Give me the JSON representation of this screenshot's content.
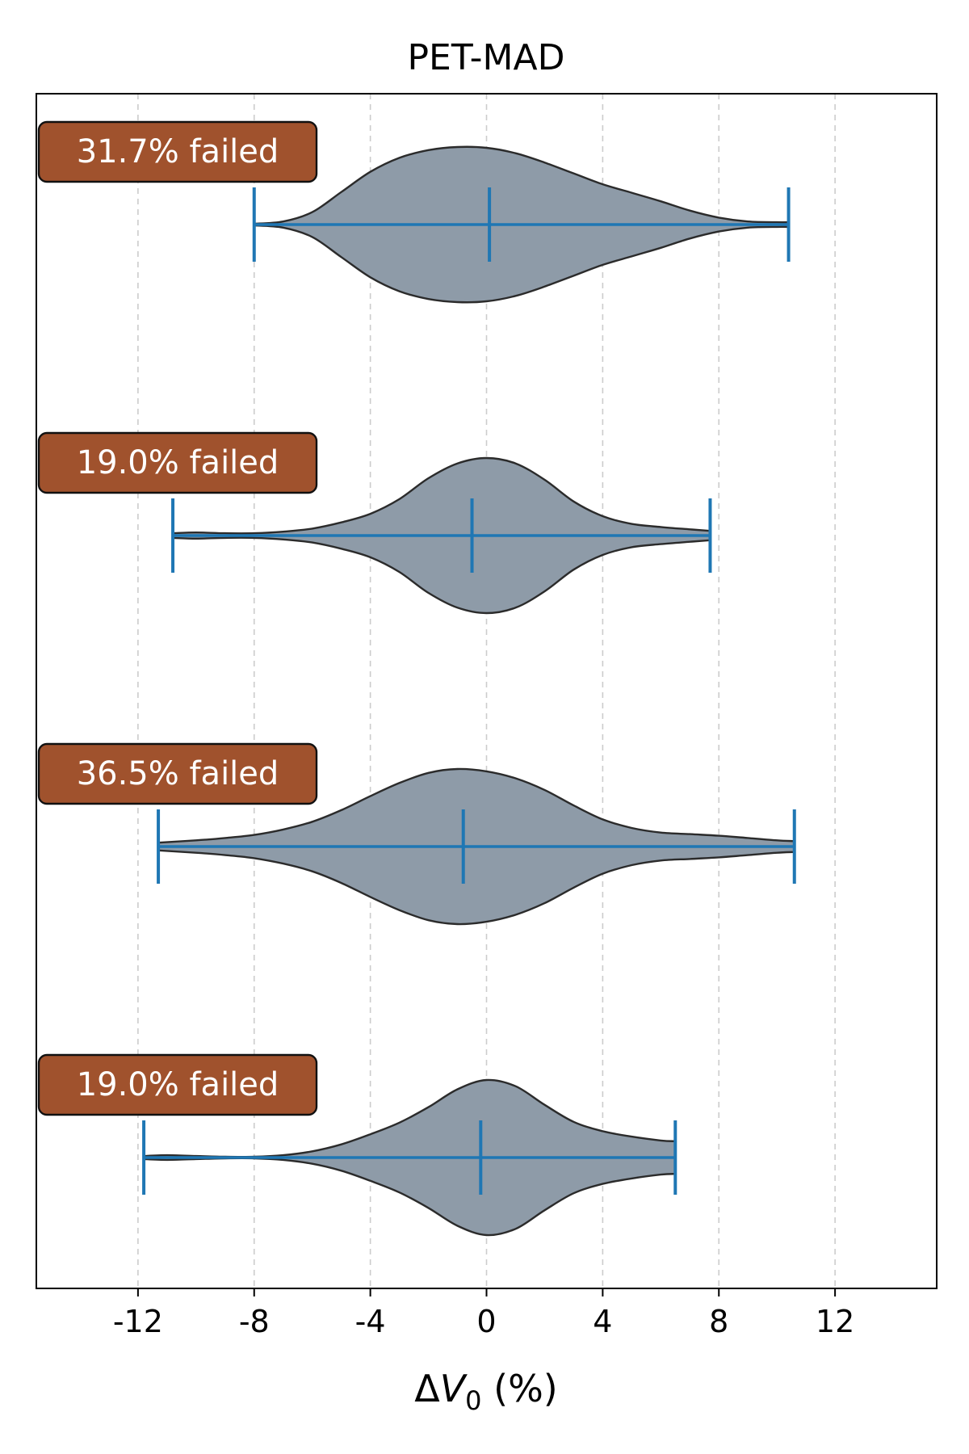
{
  "chart_data": {
    "type": "violin",
    "orientation": "horizontal",
    "title": "PET-MAD",
    "xlabel": "ΔV₀ (%)",
    "xlabel_parts": {
      "delta": "Δ",
      "var": "V",
      "sub": "0",
      "rest": " (%)"
    },
    "ylabel": "",
    "xlim": [
      -15.5,
      15.5
    ],
    "xticks": [
      -12,
      -8,
      -4,
      0,
      4,
      8,
      12
    ],
    "xtick_labels": [
      "-12",
      "-8",
      "-4",
      "0",
      "4",
      "8",
      "12"
    ],
    "grid": {
      "x": true,
      "y": false,
      "style": "dashed"
    },
    "colors": {
      "violin_fill": "#8e9ba8",
      "violin_edge": "#2b2b2b",
      "stat_lines": "#1f77b4",
      "badge_fill": "#a0522d",
      "badge_edge": "#111111",
      "grid": "#cccccc"
    },
    "violins": [
      {
        "annotation": "31.7% failed",
        "min": -8.0,
        "max": 10.4,
        "median": 0.1,
        "density": [
          [
            -8.0,
            0.01
          ],
          [
            -7.0,
            0.04
          ],
          [
            -6.0,
            0.16
          ],
          [
            -5.0,
            0.42
          ],
          [
            -4.0,
            0.68
          ],
          [
            -3.0,
            0.86
          ],
          [
            -2.0,
            0.96
          ],
          [
            -1.0,
            1.0
          ],
          [
            0.0,
            0.99
          ],
          [
            1.0,
            0.92
          ],
          [
            2.0,
            0.8
          ],
          [
            3.0,
            0.66
          ],
          [
            4.0,
            0.52
          ],
          [
            5.0,
            0.41
          ],
          [
            6.0,
            0.3
          ],
          [
            7.0,
            0.18
          ],
          [
            8.0,
            0.09
          ],
          [
            9.0,
            0.04
          ],
          [
            10.0,
            0.03
          ],
          [
            10.4,
            0.03
          ]
        ]
      },
      {
        "annotation": "19.0% failed",
        "min": -10.8,
        "max": 7.7,
        "median": -0.5,
        "density": [
          [
            -10.8,
            0.03
          ],
          [
            -10.0,
            0.04
          ],
          [
            -9.0,
            0.03
          ],
          [
            -8.0,
            0.03
          ],
          [
            -7.0,
            0.05
          ],
          [
            -6.0,
            0.09
          ],
          [
            -5.0,
            0.17
          ],
          [
            -4.0,
            0.28
          ],
          [
            -3.0,
            0.47
          ],
          [
            -2.0,
            0.74
          ],
          [
            -1.0,
            0.93
          ],
          [
            0.0,
            1.0
          ],
          [
            1.0,
            0.93
          ],
          [
            2.0,
            0.72
          ],
          [
            3.0,
            0.44
          ],
          [
            4.0,
            0.25
          ],
          [
            5.0,
            0.15
          ],
          [
            6.0,
            0.11
          ],
          [
            7.0,
            0.08
          ],
          [
            7.7,
            0.06
          ]
        ]
      },
      {
        "annotation": "36.5% failed",
        "min": -11.3,
        "max": 10.6,
        "median": -0.8,
        "density": [
          [
            -11.3,
            0.05
          ],
          [
            -10.0,
            0.08
          ],
          [
            -9.0,
            0.11
          ],
          [
            -8.0,
            0.15
          ],
          [
            -7.0,
            0.22
          ],
          [
            -6.0,
            0.32
          ],
          [
            -5.0,
            0.47
          ],
          [
            -4.0,
            0.65
          ],
          [
            -3.0,
            0.82
          ],
          [
            -2.0,
            0.95
          ],
          [
            -1.0,
            1.0
          ],
          [
            0.0,
            0.97
          ],
          [
            1.0,
            0.88
          ],
          [
            2.0,
            0.73
          ],
          [
            3.0,
            0.53
          ],
          [
            4.0,
            0.35
          ],
          [
            5.0,
            0.24
          ],
          [
            6.0,
            0.18
          ],
          [
            7.0,
            0.16
          ],
          [
            8.0,
            0.14
          ],
          [
            9.0,
            0.11
          ],
          [
            10.0,
            0.08
          ],
          [
            10.6,
            0.07
          ]
        ]
      },
      {
        "annotation": "19.0% failed",
        "min": -11.8,
        "max": 6.5,
        "median": -0.2,
        "density": [
          [
            -11.8,
            0.02
          ],
          [
            -11.0,
            0.03
          ],
          [
            -10.0,
            0.02
          ],
          [
            -9.0,
            0.01
          ],
          [
            -8.0,
            0.01
          ],
          [
            -7.0,
            0.03
          ],
          [
            -6.0,
            0.08
          ],
          [
            -5.0,
            0.17
          ],
          [
            -4.0,
            0.3
          ],
          [
            -3.0,
            0.45
          ],
          [
            -2.0,
            0.65
          ],
          [
            -1.0,
            0.88
          ],
          [
            0.0,
            1.0
          ],
          [
            1.0,
            0.92
          ],
          [
            2.0,
            0.68
          ],
          [
            3.0,
            0.46
          ],
          [
            4.0,
            0.34
          ],
          [
            5.0,
            0.27
          ],
          [
            6.0,
            0.22
          ],
          [
            6.5,
            0.21
          ]
        ]
      }
    ]
  }
}
